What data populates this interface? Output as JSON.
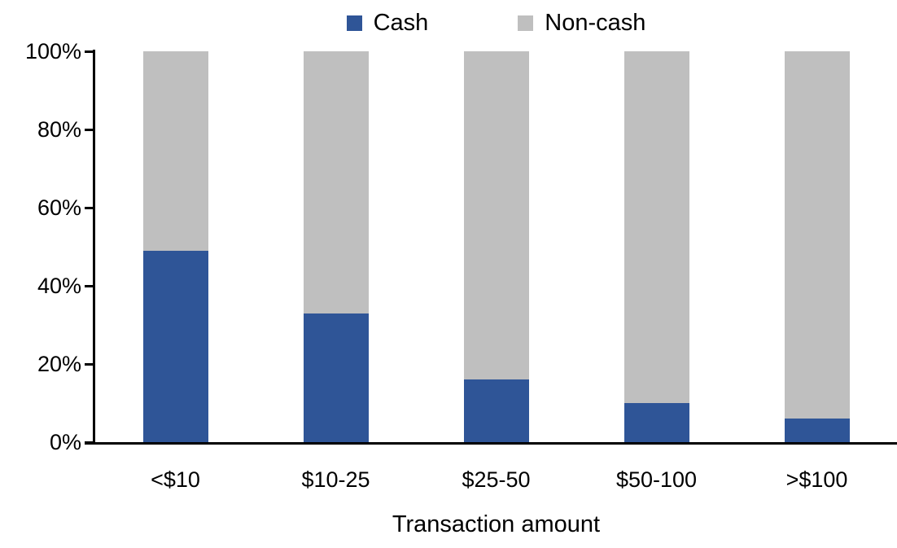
{
  "chart_data": {
    "type": "bar",
    "stacked": true,
    "title": "",
    "xlabel": "Transaction amount",
    "ylabel": "",
    "categories": [
      "<$10",
      "$10-25",
      "$25-50",
      "$50-100",
      ">$100"
    ],
    "series": [
      {
        "name": "Cash",
        "color": "#2F5597",
        "values": [
          49,
          33,
          16,
          10,
          6
        ]
      },
      {
        "name": "Non-cash",
        "color": "#BFBFBF",
        "values": [
          51,
          67,
          84,
          90,
          94
        ]
      }
    ],
    "ylim": [
      0,
      100
    ],
    "ytick_step": 20,
    "ytick_labels": [
      "0%",
      "20%",
      "40%",
      "60%",
      "80%",
      "100%"
    ],
    "legend_position": "top-center",
    "grid": false,
    "axis_color": "#000000",
    "background_color": "#FFFFFF"
  }
}
